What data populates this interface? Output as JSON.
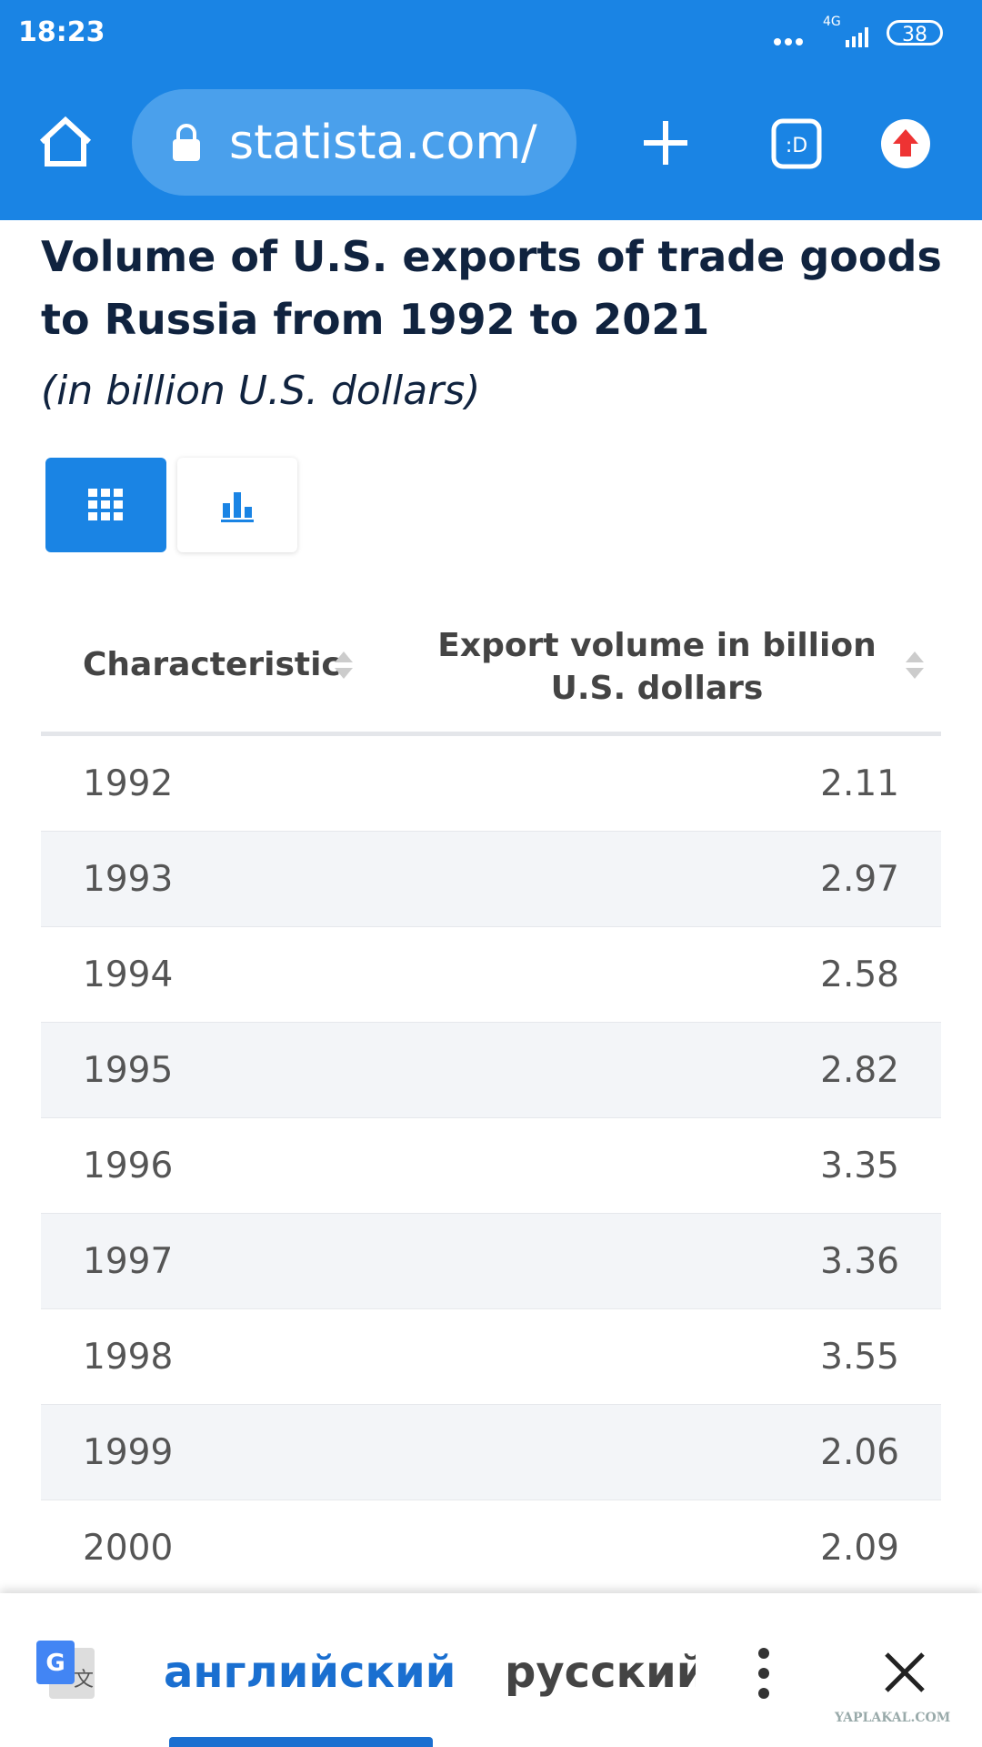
{
  "status_bar": {
    "time": "18:23",
    "network": "4G",
    "battery": "38"
  },
  "browser": {
    "url": "statista.com/"
  },
  "header": {
    "title": "Volume of U.S. exports of trade goods to Russia from 1992 to 2021",
    "subtitle": "(in billion U.S. dollars)"
  },
  "table": {
    "headers": [
      "Characteristic",
      "Export volume in billion U.S. dollars"
    ],
    "rows": [
      [
        "1992",
        "2.11"
      ],
      [
        "1993",
        "2.97"
      ],
      [
        "1994",
        "2.58"
      ],
      [
        "1995",
        "2.82"
      ],
      [
        "1996",
        "3.35"
      ],
      [
        "1997",
        "3.36"
      ],
      [
        "1998",
        "3.55"
      ],
      [
        "1999",
        "2.06"
      ],
      [
        "2000",
        "2.09"
      ]
    ]
  },
  "translate_bar": {
    "source": "английский",
    "target": "русский"
  },
  "watermark": "YAPLAKAL.COM"
}
